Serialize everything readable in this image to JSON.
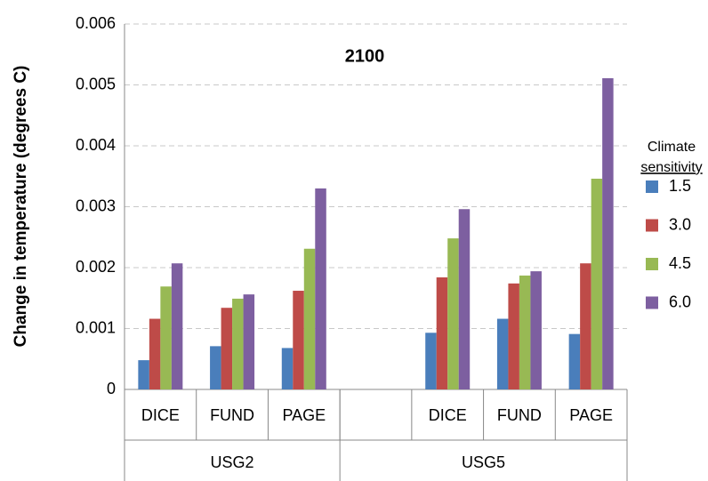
{
  "chart_data": {
    "type": "bar",
    "title": "2100",
    "y_label": "Change in temperature (degrees C)",
    "categories": [
      "DICE",
      "FUND",
      "PAGE",
      null,
      "DICE",
      "FUND",
      "PAGE"
    ],
    "groups": [
      "USG2",
      "USG5"
    ],
    "legend_title": [
      "Climate",
      "sensitivity"
    ],
    "series": [
      {
        "name": "1.5",
        "color": "#4a7ebb",
        "values": [
          0.00048,
          0.00071,
          0.00068,
          null,
          0.00093,
          0.00116,
          0.00091
        ]
      },
      {
        "name": "3.0",
        "color": "#be4b48",
        "values": [
          0.00116,
          0.00134,
          0.00162,
          null,
          0.00184,
          0.00174,
          0.00207
        ]
      },
      {
        "name": "4.5",
        "color": "#98b954",
        "values": [
          0.00169,
          0.00149,
          0.00231,
          null,
          0.00248,
          0.00187,
          0.00346
        ]
      },
      {
        "name": "6.0",
        "color": "#7d5fa0",
        "values": [
          0.00207,
          0.00156,
          0.0033,
          null,
          0.00296,
          0.00194,
          0.00511
        ]
      }
    ],
    "ylim": [
      0,
      0.006
    ],
    "yticks": [
      0,
      0.001,
      0.002,
      0.003,
      0.004,
      0.005,
      0.006
    ],
    "grid": true
  }
}
